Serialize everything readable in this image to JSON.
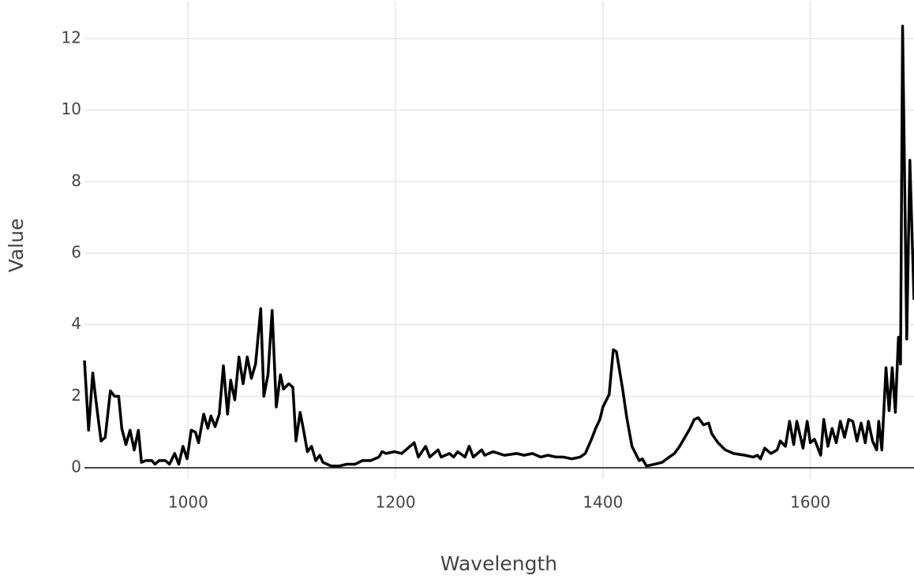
{
  "chart_data": {
    "type": "line",
    "x_label": "Wavelength",
    "y_label": "Value",
    "color": "#000000",
    "grid": true,
    "xlim": [
      900,
      1700
    ],
    "ylim": [
      -0.3,
      12.6
    ],
    "xticks": [
      1000,
      1200,
      1400,
      1600
    ],
    "yticks": [
      0,
      2,
      4,
      6,
      8,
      10,
      12
    ],
    "x": [
      900,
      904,
      908,
      911,
      916,
      920,
      925,
      929,
      933,
      936,
      940,
      944,
      948,
      952,
      955,
      959,
      965,
      968,
      972,
      978,
      982,
      987,
      991,
      995,
      999,
      1003,
      1007,
      1010,
      1015,
      1019,
      1022,
      1026,
      1030,
      1034,
      1038,
      1041,
      1045,
      1049,
      1053,
      1057,
      1061,
      1065,
      1070,
      1073,
      1077,
      1081,
      1085,
      1089,
      1092,
      1097,
      1101,
      1104,
      1108,
      1111,
      1115,
      1119,
      1123,
      1127,
      1130,
      1138,
      1146,
      1153,
      1161,
      1168,
      1176,
      1184,
      1187,
      1191,
      1199,
      1206,
      1214,
      1218,
      1222,
      1229,
      1233,
      1241,
      1244,
      1252,
      1256,
      1260,
      1267,
      1271,
      1275,
      1283,
      1286,
      1294,
      1305,
      1317,
      1324,
      1332,
      1340,
      1347,
      1355,
      1362,
      1370,
      1378,
      1383,
      1389,
      1393,
      1397,
      1400,
      1406,
      1410,
      1413,
      1419,
      1423,
      1428,
      1435,
      1438,
      1442,
      1450,
      1457,
      1464,
      1469,
      1474,
      1479,
      1484,
      1488,
      1492,
      1497,
      1502,
      1505,
      1511,
      1518,
      1526,
      1537,
      1545,
      1549,
      1552,
      1556,
      1562,
      1568,
      1571,
      1576,
      1580,
      1584,
      1587,
      1593,
      1597,
      1600,
      1604,
      1610,
      1613,
      1617,
      1621,
      1625,
      1629,
      1633,
      1637,
      1641,
      1645,
      1649,
      1653,
      1656,
      1660,
      1664,
      1666,
      1669,
      1673,
      1676,
      1679,
      1682,
      1685,
      1687,
      1689,
      1693,
      1696,
      1700
    ],
    "values": [
      3.0,
      1.05,
      2.65,
      1.9,
      0.75,
      0.85,
      2.15,
      2.0,
      2.0,
      1.1,
      0.65,
      1.05,
      0.5,
      1.05,
      0.15,
      0.2,
      0.2,
      0.1,
      0.2,
      0.2,
      0.1,
      0.4,
      0.1,
      0.6,
      0.25,
      1.05,
      1.0,
      0.7,
      1.5,
      1.1,
      1.45,
      1.15,
      1.5,
      2.85,
      1.5,
      2.45,
      1.9,
      3.1,
      2.35,
      3.1,
      2.5,
      2.9,
      4.45,
      2.0,
      2.6,
      4.4,
      1.7,
      2.6,
      2.2,
      2.35,
      2.25,
      0.75,
      1.55,
      1.1,
      0.45,
      0.6,
      0.2,
      0.35,
      0.15,
      0.05,
      0.05,
      0.1,
      0.1,
      0.2,
      0.2,
      0.3,
      0.45,
      0.4,
      0.45,
      0.4,
      0.6,
      0.7,
      0.3,
      0.6,
      0.3,
      0.5,
      0.3,
      0.4,
      0.3,
      0.45,
      0.3,
      0.6,
      0.3,
      0.5,
      0.35,
      0.45,
      0.35,
      0.4,
      0.35,
      0.4,
      0.3,
      0.35,
      0.3,
      0.3,
      0.25,
      0.3,
      0.4,
      0.8,
      1.1,
      1.35,
      1.7,
      2.05,
      3.3,
      3.25,
      2.2,
      1.4,
      0.6,
      0.2,
      0.25,
      0.05,
      0.1,
      0.15,
      0.3,
      0.4,
      0.6,
      0.85,
      1.1,
      1.35,
      1.4,
      1.2,
      1.25,
      0.95,
      0.7,
      0.5,
      0.4,
      0.35,
      0.3,
      0.35,
      0.25,
      0.55,
      0.4,
      0.5,
      0.75,
      0.6,
      1.3,
      0.65,
      1.3,
      0.55,
      1.3,
      0.7,
      0.8,
      0.35,
      1.35,
      0.6,
      1.1,
      0.7,
      1.3,
      0.85,
      1.35,
      1.3,
      0.75,
      1.25,
      0.7,
      1.3,
      0.75,
      0.5,
      1.3,
      0.5,
      2.8,
      1.6,
      2.8,
      1.55,
      3.65,
      2.9,
      12.35,
      3.6,
      8.6,
      4.7
    ]
  }
}
